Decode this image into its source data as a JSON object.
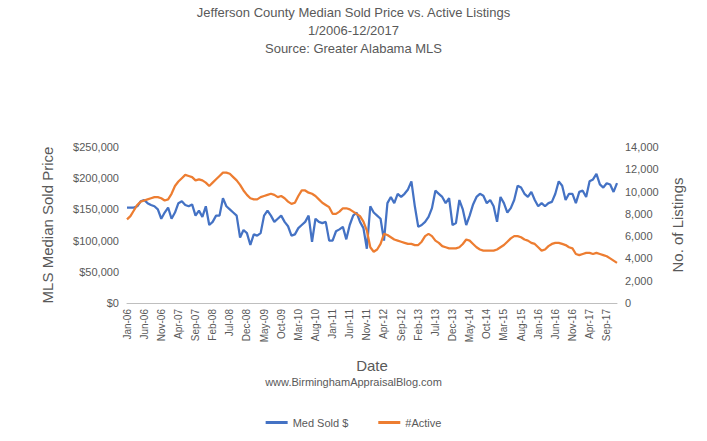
{
  "chart_data": {
    "type": "line",
    "title": "Jefferson County Median Sold Price vs. Active Listings",
    "subtitle": "1/2006-12/2017",
    "annotations": [
      "Source: Greater Alabama MLS",
      "www.BirminghamAppraisalBlog.com"
    ],
    "x_label": "Date",
    "y_label": "MLS Median Sold Price",
    "y2_label": "No. of Listings",
    "categories": [
      "Jan-06",
      null,
      null,
      null,
      null,
      "Jun-06",
      null,
      null,
      null,
      null,
      "Nov-06",
      null,
      null,
      null,
      null,
      "Apr-07",
      null,
      null,
      null,
      null,
      "Sep-07",
      null,
      null,
      null,
      null,
      "Feb-08",
      null,
      null,
      null,
      null,
      "Jul-08",
      null,
      null,
      null,
      null,
      "Dec-08",
      null,
      null,
      null,
      null,
      "May-09",
      null,
      null,
      null,
      null,
      "Oct-09",
      null,
      null,
      null,
      null,
      "Mar-10",
      null,
      null,
      null,
      null,
      "Aug-10",
      null,
      null,
      null,
      null,
      "Jan-11",
      null,
      null,
      null,
      null,
      "Jun-11",
      null,
      null,
      null,
      null,
      "Nov-11",
      null,
      null,
      null,
      null,
      "Apr-12",
      null,
      null,
      null,
      null,
      "Sep-12",
      null,
      null,
      null,
      null,
      "Feb-13",
      null,
      null,
      null,
      null,
      "Jul-13",
      null,
      null,
      null,
      null,
      "Dec-13",
      null,
      null,
      null,
      null,
      "May-14",
      null,
      null,
      null,
      null,
      "Oct-14",
      null,
      null,
      null,
      null,
      "Mar-15",
      null,
      null,
      null,
      null,
      "Aug-15",
      null,
      null,
      null,
      null,
      "Jan-16",
      null,
      null,
      null,
      null,
      "Jun-16",
      null,
      null,
      null,
      null,
      "Nov-16",
      null,
      null,
      null,
      null,
      "Apr-17",
      null,
      null,
      null,
      null,
      "Sep-17",
      null,
      null,
      null
    ],
    "series": [
      {
        "name": "Med Sold $",
        "color": "#4472c4",
        "axis": "y",
        "marker": "none",
        "line_style": "solid",
        "values": [
          153000,
          153000,
          153000,
          155000,
          163000,
          165000,
          160000,
          157000,
          155000,
          150000,
          135000,
          145000,
          153000,
          135000,
          145000,
          160000,
          163000,
          157000,
          155000,
          158000,
          140000,
          148000,
          138000,
          155000,
          125000,
          130000,
          140000,
          140000,
          168000,
          155000,
          150000,
          145000,
          140000,
          105000,
          117000,
          112000,
          93000,
          110000,
          108000,
          112000,
          140000,
          148000,
          140000,
          130000,
          135000,
          140000,
          130000,
          123000,
          108000,
          110000,
          120000,
          125000,
          130000,
          140000,
          98000,
          135000,
          130000,
          128000,
          130000,
          100000,
          100000,
          115000,
          118000,
          122000,
          102000,
          125000,
          140000,
          145000,
          130000,
          120000,
          87000,
          155000,
          145000,
          140000,
          135000,
          100000,
          160000,
          170000,
          160000,
          175000,
          170000,
          175000,
          182000,
          195000,
          155000,
          122000,
          125000,
          130000,
          138000,
          152000,
          180000,
          175000,
          170000,
          160000,
          168000,
          125000,
          128000,
          165000,
          150000,
          125000,
          140000,
          158000,
          170000,
          175000,
          172000,
          160000,
          165000,
          155000,
          130000,
          170000,
          160000,
          145000,
          152000,
          165000,
          188000,
          185000,
          175000,
          170000,
          178000,
          165000,
          155000,
          160000,
          155000,
          160000,
          162000,
          175000,
          195000,
          188000,
          165000,
          175000,
          175000,
          160000,
          178000,
          180000,
          170000,
          195000,
          198000,
          207000,
          190000,
          185000,
          192000,
          190000,
          178000,
          192000
        ]
      },
      {
        "name": "#Active",
        "color": "#ed7d31",
        "axis": "y2",
        "marker": "none",
        "line_style": "solid",
        "values": [
          7500,
          7800,
          8300,
          8800,
          9100,
          9200,
          9300,
          9400,
          9500,
          9500,
          9400,
          9200,
          9300,
          9800,
          10500,
          10900,
          11200,
          11500,
          11400,
          11300,
          11000,
          11100,
          11000,
          10800,
          10500,
          10800,
          11100,
          11400,
          11700,
          11700,
          11600,
          11300,
          11000,
          10600,
          10100,
          9700,
          9400,
          9300,
          9300,
          9500,
          9600,
          9700,
          9800,
          9700,
          9500,
          9600,
          9400,
          9100,
          8900,
          9000,
          9600,
          10100,
          10100,
          9900,
          9800,
          9600,
          9300,
          9000,
          8800,
          8600,
          8000,
          8000,
          8200,
          8500,
          8500,
          8400,
          8200,
          8000,
          7800,
          7300,
          6500,
          5000,
          4600,
          4800,
          5300,
          6200,
          6100,
          5900,
          5700,
          5600,
          5500,
          5400,
          5300,
          5300,
          5200,
          5200,
          5500,
          6000,
          6200,
          6000,
          5600,
          5400,
          5100,
          5000,
          4900,
          4900,
          4900,
          5000,
          5300,
          5700,
          5600,
          5300,
          5000,
          4800,
          4700,
          4700,
          4700,
          4700,
          4800,
          5000,
          5200,
          5500,
          5800,
          6000,
          6000,
          5900,
          5700,
          5600,
          5400,
          5300,
          5000,
          4700,
          4800,
          5100,
          5300,
          5400,
          5400,
          5300,
          5200,
          5000,
          4900,
          4400,
          4300,
          4400,
          4500,
          4500,
          4400,
          4500,
          4400,
          4300,
          4200,
          4000,
          3800,
          3600
        ]
      }
    ],
    "ylim": [
      0,
      250000
    ],
    "yticks": [
      {
        "value": 0,
        "label": "$0"
      },
      {
        "value": 50000,
        "label": "$50,000"
      },
      {
        "value": 100000,
        "label": "$100,000"
      },
      {
        "value": 150000,
        "label": "$150,000"
      },
      {
        "value": 200000,
        "label": "$200,000"
      },
      {
        "value": 250000,
        "label": "$250,000"
      }
    ],
    "y2lim": [
      0,
      14000
    ],
    "y2ticks": [
      0,
      {
        "value": 2000,
        "label": "2,000"
      },
      {
        "value": 4000,
        "label": "4,000"
      },
      {
        "value": 6000,
        "label": "6,000"
      },
      {
        "value": 8000,
        "label": "8,000"
      },
      {
        "value": 10000,
        "label": "10,000"
      },
      {
        "value": 12000,
        "label": "12,000"
      },
      {
        "value": 14000,
        "label": "14,000"
      }
    ],
    "grid": false,
    "legend": "bottom"
  }
}
